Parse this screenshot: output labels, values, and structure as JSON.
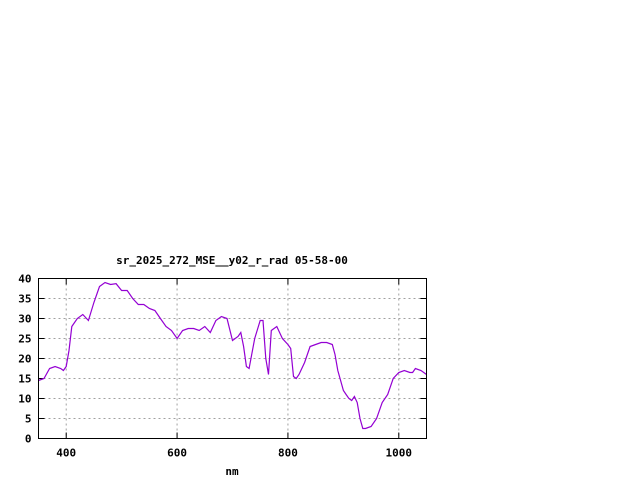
{
  "chart_data": {
    "type": "line",
    "title": "sr_2025_272_MSE__y02_r_rad 05-58-00",
    "xlabel": "nm",
    "ylabel": "",
    "xlim": [
      350,
      1050
    ],
    "ylim": [
      0,
      40
    ],
    "xticks": [
      400,
      600,
      800,
      1000
    ],
    "yticks": [
      0,
      5,
      10,
      15,
      20,
      25,
      30,
      35,
      40
    ],
    "grid": true,
    "line_color": "#9400d3",
    "series": [
      {
        "x": [
          350,
          360,
          370,
          380,
          390,
          395,
          400,
          405,
          410,
          420,
          430,
          440,
          450,
          460,
          470,
          480,
          490,
          500,
          510,
          520,
          530,
          540,
          550,
          560,
          570,
          580,
          590,
          600,
          610,
          620,
          630,
          640,
          650,
          660,
          670,
          680,
          690,
          700,
          710,
          715,
          720,
          725,
          730,
          740,
          750,
          755,
          760,
          765,
          770,
          780,
          790,
          800,
          805,
          810,
          815,
          820,
          830,
          840,
          850,
          860,
          870,
          880,
          885,
          890,
          900,
          905,
          910,
          915,
          920,
          925,
          930,
          935,
          940,
          950,
          960,
          970,
          980,
          990,
          1000,
          1010,
          1020,
          1025,
          1030,
          1040,
          1050
        ],
        "y": [
          14.5,
          15,
          17.5,
          18,
          17.5,
          17,
          18,
          22,
          28,
          30,
          31,
          29.5,
          34,
          38,
          39,
          38.5,
          38.7,
          37,
          37,
          35,
          33.5,
          33.5,
          32.5,
          32,
          30,
          28,
          27,
          25,
          27,
          27.5,
          27.5,
          27,
          28,
          26.5,
          29.5,
          30.5,
          30,
          24.5,
          25.5,
          26.5,
          23,
          18,
          17.5,
          25,
          29.5,
          29.5,
          20,
          16,
          27,
          28,
          25,
          23.5,
          22.5,
          15.5,
          15,
          16,
          19,
          23,
          23.5,
          24,
          24,
          23.5,
          21,
          17,
          12,
          11,
          10,
          9.5,
          10.5,
          9,
          5,
          2.5,
          2.5,
          3,
          5,
          9,
          11,
          15,
          16.5,
          17,
          16.5,
          16.5,
          17.5,
          17,
          16
        ]
      }
    ]
  }
}
